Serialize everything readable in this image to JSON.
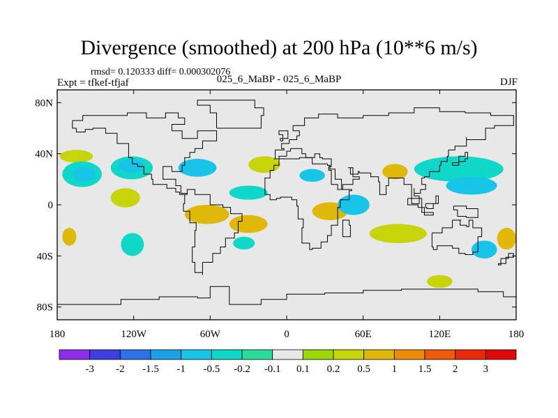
{
  "header": {
    "title": "Divergence (smoothed) at 200 hPa (10**6 m/s)",
    "stats": "rmsd= 0.120333 diff= 0.000302076",
    "expt": "Expt = tfkef-tfjaf",
    "case": "025_6_MaBP - 025_6_MaBP",
    "season": "DJF"
  },
  "chart_data": {
    "type": "heatmap",
    "title": "Divergence (smoothed) at 200 hPa (10**6 m/s)",
    "xlabel": "",
    "ylabel": "",
    "xlim": [
      -180,
      180
    ],
    "ylim": [
      -90,
      90
    ],
    "x_ticks": [
      {
        "value": -180,
        "label": "180"
      },
      {
        "value": -120,
        "label": "120W"
      },
      {
        "value": -60,
        "label": "60W"
      },
      {
        "value": 0,
        "label": "0"
      },
      {
        "value": 60,
        "label": "60E"
      },
      {
        "value": 120,
        "label": "120E"
      },
      {
        "value": 180,
        "label": "180"
      }
    ],
    "y_ticks": [
      {
        "value": 80,
        "label": "80N"
      },
      {
        "value": 40,
        "label": "40N"
      },
      {
        "value": 0,
        "label": "0"
      },
      {
        "value": -40,
        "label": "40S"
      },
      {
        "value": -80,
        "label": "80S"
      }
    ],
    "background_color": "#e8e8e8",
    "colorbar": {
      "levels": [
        "-3",
        "-2",
        "-1.5",
        "-1",
        "-0.5",
        "-0.2",
        "-0.1",
        "0.1",
        "0.2",
        "0.5",
        "1",
        "1.5",
        "2",
        "3"
      ],
      "colors": [
        "#8f2ee8",
        "#3d3de0",
        "#2f72e8",
        "#1ea0e8",
        "#18c4e8",
        "#10d8c8",
        "#28dc9a",
        "#e8e8e8",
        "#9ad80a",
        "#c8d40a",
        "#e0b80a",
        "#ec8c0a",
        "#ec5a0a",
        "#e82a0a",
        "#e00808"
      ]
    },
    "regions": [
      {
        "sign": "positive",
        "level": "0.2",
        "lon": [
          -178,
          -152
        ],
        "lat": [
          33,
          43
        ]
      },
      {
        "sign": "negative",
        "level": "-0.2",
        "lon": [
          -176,
          -145
        ],
        "lat": [
          14,
          34
        ]
      },
      {
        "sign": "negative",
        "level": "-0.5",
        "lon": [
          -168,
          -150
        ],
        "lat": [
          18,
          30
        ]
      },
      {
        "sign": "positive",
        "level": "0.5",
        "lon": [
          -176,
          -165
        ],
        "lat": [
          -32,
          -18
        ]
      },
      {
        "sign": "negative",
        "level": "-0.2",
        "lon": [
          -138,
          -105
        ],
        "lat": [
          20,
          38
        ]
      },
      {
        "sign": "negative",
        "level": "-0.5",
        "lon": [
          -132,
          -112
        ],
        "lat": [
          25,
          36
        ]
      },
      {
        "sign": "positive",
        "level": "0.2",
        "lon": [
          -138,
          -115
        ],
        "lat": [
          -2,
          13
        ]
      },
      {
        "sign": "negative",
        "level": "-0.2",
        "lon": [
          -130,
          -112
        ],
        "lat": [
          -40,
          -22
        ]
      },
      {
        "sign": "negative",
        "level": "-0.5",
        "lon": [
          -85,
          -55
        ],
        "lat": [
          22,
          36
        ]
      },
      {
        "sign": "positive",
        "level": "0.5",
        "lon": [
          -80,
          -45
        ],
        "lat": [
          -15,
          0
        ]
      },
      {
        "sign": "positive",
        "level": "0.5",
        "lon": [
          -45,
          -15
        ],
        "lat": [
          -22,
          -8
        ]
      },
      {
        "sign": "negative",
        "level": "-0.2",
        "lon": [
          -42,
          -25
        ],
        "lat": [
          -35,
          -25
        ]
      },
      {
        "sign": "positive",
        "level": "0.2",
        "lon": [
          -30,
          -5
        ],
        "lat": [
          25,
          38
        ]
      },
      {
        "sign": "negative",
        "level": "-0.2",
        "lon": [
          -45,
          -15
        ],
        "lat": [
          4,
          15
        ]
      },
      {
        "sign": "negative",
        "level": "-0.5",
        "lon": [
          10,
          30
        ],
        "lat": [
          18,
          28
        ]
      },
      {
        "sign": "positive",
        "level": "0.5",
        "lon": [
          20,
          48
        ],
        "lat": [
          -12,
          2
        ]
      },
      {
        "sign": "negative",
        "level": "-0.5",
        "lon": [
          40,
          65
        ],
        "lat": [
          -8,
          8
        ]
      },
      {
        "sign": "positive",
        "level": "0.5",
        "lon": [
          75,
          95
        ],
        "lat": [
          20,
          32
        ]
      },
      {
        "sign": "negative",
        "level": "-0.2",
        "lon": [
          100,
          170
        ],
        "lat": [
          18,
          38
        ]
      },
      {
        "sign": "negative",
        "level": "-0.5",
        "lon": [
          125,
          165
        ],
        "lat": [
          8,
          22
        ]
      },
      {
        "sign": "positive",
        "level": "0.2",
        "lon": [
          65,
          110
        ],
        "lat": [
          -30,
          -15
        ]
      },
      {
        "sign": "negative",
        "level": "-0.5",
        "lon": [
          145,
          165
        ],
        "lat": [
          -42,
          -28
        ]
      },
      {
        "sign": "positive",
        "level": "0.5",
        "lon": [
          165,
          180
        ],
        "lat": [
          -35,
          -18
        ]
      },
      {
        "sign": "positive",
        "level": "0.2",
        "lon": [
          110,
          130
        ],
        "lat": [
          -65,
          -55
        ]
      }
    ]
  }
}
